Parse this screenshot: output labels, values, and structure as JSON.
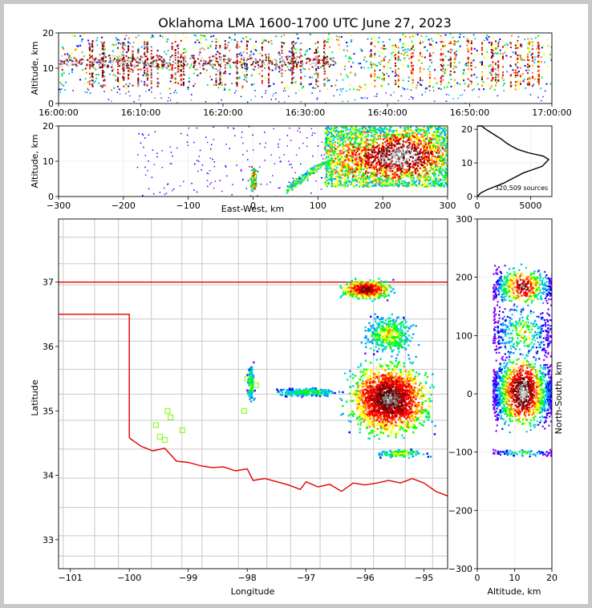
{
  "title": "Oklahoma LMA 1600-1700 UTC June 27, 2023",
  "colors": {
    "state_border": "#e00000",
    "county_lines": "#c8c8c8",
    "station_marker": "#7cfc00",
    "density_scale": [
      "#7f00ff",
      "#0000ff",
      "#00a0ff",
      "#00e0c0",
      "#00ff00",
      "#ffff00",
      "#ff8000",
      "#ff0000",
      "#c00000",
      "#600000",
      "#808080",
      "#c0c0c0",
      "#ffffff"
    ]
  },
  "chart_data": [
    {
      "id": "alt_time",
      "type": "heatmap",
      "ylabel": "Altitude, km",
      "ylim": [
        0,
        20
      ],
      "xlim": [
        "16:00:00",
        "17:00:00"
      ],
      "xticks": [
        "16:00:00",
        "16:10:00",
        "16:20:00",
        "16:30:00",
        "16:40:00",
        "16:50:00",
        "17:00:00"
      ],
      "yticks": [
        "0",
        "10",
        "20"
      ]
    },
    {
      "id": "ew_alt",
      "type": "heatmap",
      "xlabel": "East-West, km",
      "ylabel": "Altitude, km",
      "xlim": [
        -300,
        300
      ],
      "ylim": [
        0,
        20
      ],
      "xticks": [
        "−300",
        "−200",
        "−100",
        "0",
        "100",
        "200",
        "300"
      ],
      "yticks": [
        "0",
        "10",
        "20"
      ]
    },
    {
      "id": "alt_hist",
      "type": "line",
      "annotation": "320,509 sources",
      "xlim": [
        0,
        7000
      ],
      "ylim": [
        0,
        20
      ],
      "xticks": [
        "0",
        "5000"
      ],
      "yticks": [
        "0",
        "10",
        "20"
      ],
      "x": [
        0,
        300,
        900,
        1700,
        2500,
        3100,
        3700,
        4300,
        5200,
        6100,
        6700,
        6200,
        4800,
        3800,
        3200,
        2700,
        2300,
        1800,
        1300,
        800,
        400,
        0
      ],
      "y": [
        0,
        1,
        2,
        3,
        4,
        5,
        6,
        7,
        8,
        9,
        11,
        12,
        13,
        14,
        15,
        16,
        17,
        18,
        19,
        20,
        21,
        21
      ]
    },
    {
      "id": "plan_view",
      "type": "heatmap",
      "xlabel": "Longitude",
      "ylabel": "Latitude",
      "xlim": [
        -101.2,
        -94.6
      ],
      "ylim": [
        32.55,
        37.98
      ],
      "xticks": [
        "−101",
        "−100",
        "−99",
        "−98",
        "−97",
        "−96",
        "−95"
      ],
      "yticks": [
        "33",
        "34",
        "35",
        "36",
        "37"
      ]
    },
    {
      "id": "ns_alt",
      "type": "heatmap",
      "xlabel": "Altitude, km",
      "ylabel": "North-South, km",
      "xlim": [
        0,
        20
      ],
      "ylim": [
        -300,
        300
      ],
      "xticks": [
        "0",
        "10",
        "20"
      ],
      "yticks": [
        "−300",
        "−200",
        "−100",
        "0",
        "100",
        "200",
        "300"
      ]
    }
  ]
}
